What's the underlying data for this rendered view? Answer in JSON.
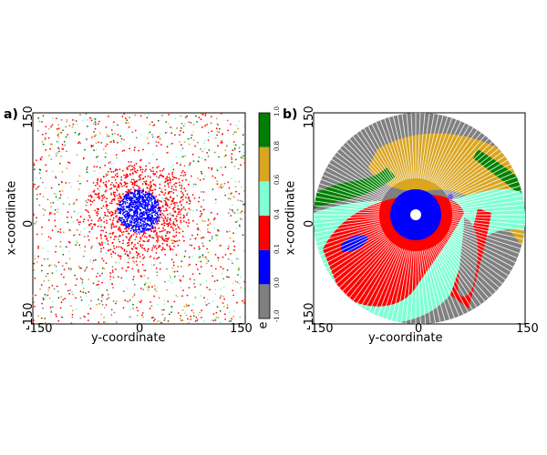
{
  "panels": [
    {
      "label": "a)",
      "ylabel": "x-coordinate",
      "xlabel": "y-coordinate",
      "xticks": [
        "-150",
        "0",
        "150"
      ],
      "yticks": [
        "150",
        "0",
        "-150"
      ]
    },
    {
      "label": "b)",
      "ylabel": "x-coordinate",
      "xlabel": "y-coordinate",
      "xticks": [
        "-150",
        "0",
        "150"
      ],
      "yticks": [
        "150",
        "0",
        "-150"
      ]
    }
  ],
  "colorbar": {
    "symbol": "e",
    "ticks": [
      "-1.0",
      "0.0",
      "0.1",
      "0.4",
      "0.6",
      "0.8",
      "1.0"
    ],
    "colors": [
      "#808080",
      "#0000ff",
      "#ff0000",
      "#80ffd4",
      "#daa520",
      "#008000"
    ]
  },
  "chart_data": [
    {
      "type": "scatter",
      "panel": "a)",
      "xlabel": "y-coordinate",
      "ylabel": "x-coordinate",
      "xlim": [
        -150,
        150
      ],
      "ylim": [
        -150,
        150
      ],
      "description_series": [
        {
          "range_e": "0.0-0.1",
          "color": "#0000ff",
          "region": "disk centered near (0,10), radius ~28"
        },
        {
          "range_e": "0.1-0.4",
          "color": "#ff0000",
          "region": "dense ring around center, radius ~30-90"
        },
        {
          "range_e": "-1.0-0.0",
          "color": "#808080",
          "region": "scattered throughout"
        },
        {
          "range_e": "0.4-0.6",
          "color": "#80ffd4",
          "region": "scattered, outer region"
        },
        {
          "range_e": "0.6-0.8",
          "color": "#daa520",
          "region": "scattered, outer region"
        },
        {
          "range_e": "0.8-1.0",
          "color": "#008000",
          "region": "scattered, outer region"
        }
      ]
    },
    {
      "type": "heatmap",
      "panel": "b)",
      "xlabel": "y-coordinate",
      "ylabel": "x-coordinate",
      "xlim": [
        -150,
        150
      ],
      "ylim": [
        -150,
        150
      ],
      "domain": "disk radius 150 centered at (0,0)"
    }
  ]
}
